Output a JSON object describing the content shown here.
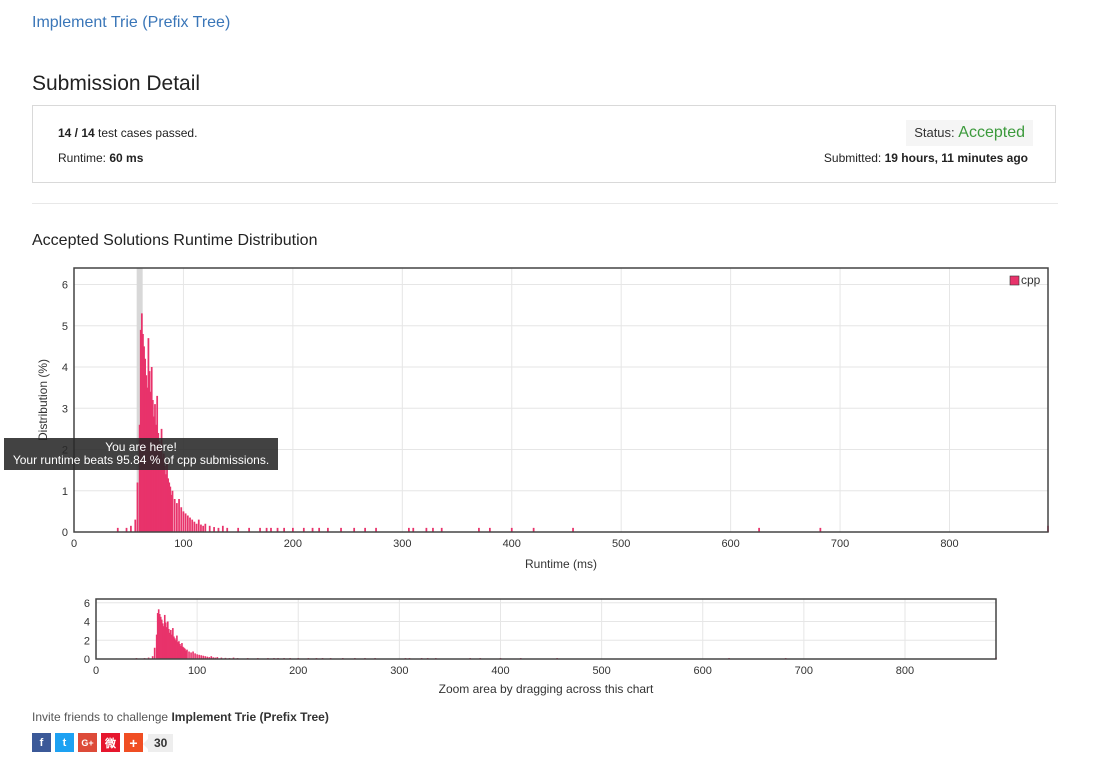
{
  "problem": {
    "title": "Implement Trie (Prefix Tree)"
  },
  "page": {
    "title": "Submission Detail"
  },
  "detail": {
    "passed": "14 / 14",
    "passed_suffix": "test cases passed.",
    "runtime_label": "Runtime:",
    "runtime_value": "60 ms",
    "status_label": "Status:",
    "status_value": "Accepted",
    "submitted_label": "Submitted:",
    "submitted_value": "19 hours, 11 minutes ago"
  },
  "section": {
    "distribution_title": "Accepted Solutions Runtime Distribution"
  },
  "tooltip": {
    "line1": "You are here!",
    "line2": "Your runtime beats 95.84 % of cpp submissions."
  },
  "colors": {
    "bar": "#e8336b",
    "status": "#3c9a3c",
    "link": "#3a76b8"
  },
  "chart_data": [
    {
      "type": "bar",
      "ylabel": "Distribution (%)",
      "xlabel": "Runtime (ms)",
      "xlim": [
        0,
        890
      ],
      "ylim": [
        0,
        6.4
      ],
      "xticks": [
        0,
        100,
        200,
        300,
        400,
        500,
        600,
        700,
        800
      ],
      "yticks": [
        0,
        1,
        2,
        3,
        4,
        5,
        6
      ],
      "legend": "top-right",
      "series": [
        {
          "name": "cpp",
          "x": [
            40,
            48,
            52,
            56,
            58,
            60,
            61,
            62,
            63,
            64,
            65,
            66,
            67,
            68,
            69,
            70,
            71,
            72,
            73,
            74,
            75,
            76,
            77,
            78,
            79,
            80,
            81,
            82,
            83,
            84,
            85,
            86,
            87,
            88,
            89,
            90,
            92,
            94,
            96,
            98,
            100,
            102,
            104,
            106,
            108,
            110,
            112,
            114,
            116,
            118,
            120,
            124,
            128,
            132,
            136,
            140,
            150,
            160,
            170,
            176,
            180,
            186,
            192,
            200,
            210,
            218,
            224,
            232,
            244,
            256,
            266,
            276,
            306,
            310,
            322,
            328,
            336,
            370,
            380,
            400,
            420,
            456,
            626,
            682,
            890
          ],
          "values": [
            0.1,
            0.1,
            0.15,
            0.3,
            1.2,
            2.6,
            4.9,
            5.3,
            4.8,
            4.5,
            4.2,
            3.8,
            3.5,
            4.7,
            3.9,
            3.4,
            4.0,
            3.2,
            2.8,
            3.1,
            2.6,
            3.3,
            2.4,
            2.2,
            2.0,
            2.5,
            1.8,
            1.9,
            1.6,
            1.4,
            1.7,
            1.3,
            1.2,
            1.1,
            0.9,
            1.0,
            0.8,
            0.7,
            0.8,
            0.6,
            0.5,
            0.45,
            0.4,
            0.35,
            0.3,
            0.25,
            0.2,
            0.3,
            0.18,
            0.15,
            0.2,
            0.15,
            0.12,
            0.1,
            0.15,
            0.1,
            0.1,
            0.1,
            0.1,
            0.1,
            0.1,
            0.1,
            0.1,
            0.1,
            0.1,
            0.1,
            0.1,
            0.1,
            0.1,
            0.1,
            0.1,
            0.1,
            0.1,
            0.1,
            0.1,
            0.1,
            0.1,
            0.1,
            0.1,
            0.1,
            0.1,
            0.1,
            0.1,
            0.1,
            0.15
          ]
        }
      ],
      "highlight_x": 60
    },
    {
      "type": "bar",
      "xlabel": "Zoom area by dragging across this chart",
      "xlim": [
        0,
        890
      ],
      "ylim": [
        0,
        6.4
      ],
      "xticks": [
        0,
        100,
        200,
        300,
        400,
        500,
        600,
        700,
        800
      ],
      "yticks": [
        0,
        2,
        4,
        6
      ]
    }
  ],
  "share": {
    "invite_prefix": "Invite friends to challenge",
    "invite_problem": "Implement Trie (Prefix Tree)",
    "buttons": [
      {
        "name": "facebook",
        "glyph": "f",
        "color": "#3b5998"
      },
      {
        "name": "twitter",
        "glyph": "t",
        "color": "#1da1f2"
      },
      {
        "name": "google-plus",
        "glyph": "G+",
        "color": "#dd4b39"
      },
      {
        "name": "weibo",
        "glyph": "微",
        "color": "#e6162d"
      },
      {
        "name": "more",
        "glyph": "+",
        "color": "#f04e23"
      }
    ],
    "count": "30"
  }
}
